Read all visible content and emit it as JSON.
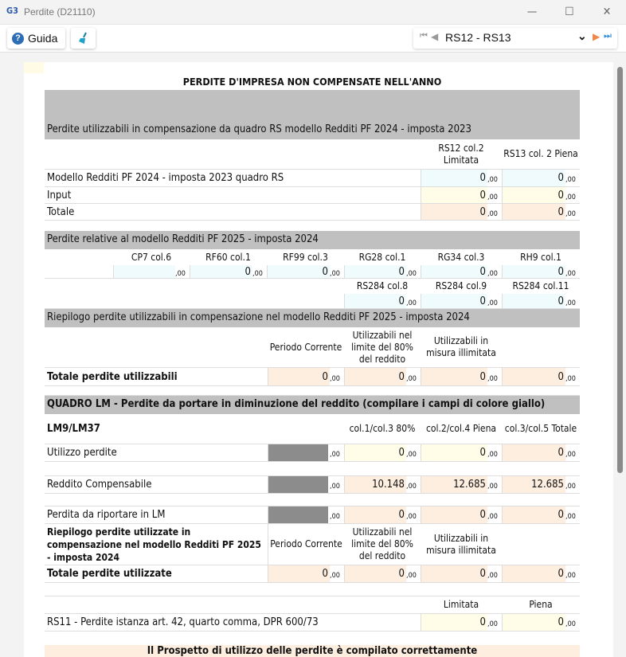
{
  "window": {
    "title": "Perdite (D21110)",
    "logo": "G3",
    "minimize": "—",
    "maximize": "☐",
    "close": "✕"
  },
  "toolbar": {
    "help_label": "Guida",
    "help_icon": "?",
    "nav_value": "RS12 - RS13",
    "first": "⏮",
    "prev": "◀",
    "next": "▶",
    "last": "⏭",
    "chevron": "⌄"
  },
  "page_title": "PERDITE D'IMPRESA NON COMPENSATE NELL'ANNO",
  "s1": {
    "header": "Perdite utilizzabili in compensazione da quadro RS modello Redditi PF 2024 - imposta 2023",
    "col1": "RS12 col.2 Limitata",
    "col2": "RS13 col. 2 Piena",
    "rows": [
      {
        "label": "Modello Redditi PF 2024 - imposta 2023 quadro RS",
        "v1": "0",
        "v2": "0"
      },
      {
        "label": "Input",
        "v1": "0",
        "v2": "0"
      },
      {
        "label": "Totale",
        "v1": "0",
        "v2": "0"
      }
    ]
  },
  "s2": {
    "header": "Perdite relative al modello Redditi PF 2025 - imposta 2024",
    "cols": [
      "CP7 col.6",
      "RF60 col.1",
      "RF99 col.3",
      "RG28 col.1",
      "RG34 col.3",
      "RH9 col.1"
    ],
    "vals": [
      "",
      "0",
      "0",
      "0",
      "0",
      "0"
    ],
    "cols2": [
      "RS284 col.8",
      "RS284 col.9",
      "RS284 col.11"
    ],
    "vals2": [
      "0",
      "0",
      "0"
    ]
  },
  "s3": {
    "header": "Riepilogo perdite utilizzabili in compensazione nel modello Redditi PF 2025 - imposta 2024",
    "h1": "Periodo Corrente",
    "h2": "Utilizzabili nel limite del 80% del reddito",
    "h3": "Utilizzabili in misura illimitata",
    "total_label": "Totale perdite utilizzabili",
    "vals": [
      "0",
      "0",
      "0",
      "0"
    ]
  },
  "lm": {
    "header": "QUADRO LM - Perdite da portare in diminuzione del reddito (compilare i campi di colore giallo)",
    "title": "LM9/LM37",
    "h1": "col.1/col.3  80%",
    "h2": "col.2/col.4 Piena",
    "h3": "col.3/col.5 Totale",
    "rows": [
      {
        "label": "Utilizzo perdite",
        "v": [
          "0",
          "0",
          "0"
        ]
      },
      {
        "label": "Reddito Compensabile",
        "v": [
          "10.148",
          "12.685",
          "12.685"
        ]
      },
      {
        "label": "Perdita da riportare in LM",
        "v": [
          "0",
          "0",
          "0"
        ]
      }
    ],
    "sum_label": "Riepilogo perdite utilizzate in compensazione nel modello Redditi PF 2025 - imposta 2024",
    "sh1": "Periodo Corrente",
    "sh2": "Utilizzabili nel limite del 80% del reddito",
    "sh3": "Utilizzabili in misura illimitata",
    "total_label": "Totale perdite utilizzate",
    "tvals": [
      "0",
      "0",
      "0",
      "0"
    ]
  },
  "rs11": {
    "h1": "Limitata",
    "h2": "Piena",
    "label": "RS11 - Perdite istanza art. 42, quarto comma, DPR 600/73",
    "v1": "0",
    "v2": "0"
  },
  "dec": ",00",
  "message": "Il Prospetto di utilizzo delle perdite è compilato correttamente"
}
